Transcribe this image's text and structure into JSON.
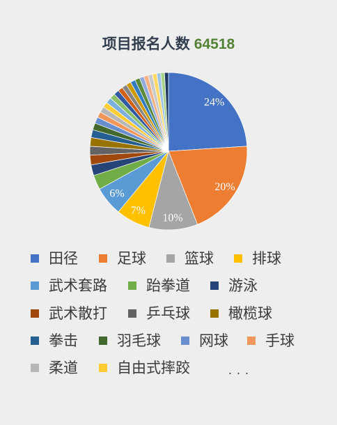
{
  "chart_data": {
    "type": "pie",
    "title": "项目报名人数",
    "total": "64518",
    "legend": {
      "position": "bottom",
      "more": ". . ."
    },
    "slices": [
      {
        "name": "田径",
        "value": 24,
        "color": "#4472C4",
        "label": "24%"
      },
      {
        "name": "足球",
        "value": 20,
        "color": "#ED7D31",
        "label": "20%"
      },
      {
        "name": "篮球",
        "value": 10,
        "color": "#A5A5A5",
        "label": "10%"
      },
      {
        "name": "排球",
        "value": 7,
        "color": "#FFC000",
        "label": "7%"
      },
      {
        "name": "武术套路",
        "value": 6,
        "color": "#5B9BD5",
        "label": "6%"
      },
      {
        "name": "跆拳道",
        "value": 3,
        "color": "#70AD47"
      },
      {
        "name": "游泳",
        "value": 2.2,
        "color": "#264478"
      },
      {
        "name": "武术散打",
        "value": 2,
        "color": "#9E480E"
      },
      {
        "name": "乒乓球",
        "value": 1.8,
        "color": "#636363"
      },
      {
        "name": "橄榄球",
        "value": 1.8,
        "color": "#997300"
      },
      {
        "name": "拳击",
        "value": 1.6,
        "color": "#255E91"
      },
      {
        "name": "羽毛球",
        "value": 1.4,
        "color": "#43682B"
      },
      {
        "name": "网球",
        "value": 1.3,
        "color": "#698ED0"
      },
      {
        "name": "手球",
        "value": 1.2,
        "color": "#F1975A"
      },
      {
        "name": "柔道",
        "value": 1.2,
        "color": "#B7B7B7"
      },
      {
        "name": "自由式摔跤",
        "value": 1.1,
        "color": "#FFCD33"
      },
      {
        "name": "",
        "value": 1.2,
        "color": "#7CAFDD"
      },
      {
        "name": "",
        "value": 1.1,
        "color": "#8CC168"
      },
      {
        "name": "",
        "value": 1.1,
        "color": "#335AA1"
      },
      {
        "name": "",
        "value": 1.0,
        "color": "#D26012"
      },
      {
        "name": "",
        "value": 1.0,
        "color": "#848484"
      },
      {
        "name": "",
        "value": 1.0,
        "color": "#CC9A00"
      },
      {
        "name": "",
        "value": 1.0,
        "color": "#327DC2"
      },
      {
        "name": "",
        "value": 1.0,
        "color": "#5A8A39"
      },
      {
        "name": "",
        "value": 0.9,
        "color": "#8FAADC"
      },
      {
        "name": "",
        "value": 0.9,
        "color": "#F4B183"
      },
      {
        "name": "",
        "value": 0.9,
        "color": "#C9C9C9"
      },
      {
        "name": "",
        "value": 0.9,
        "color": "#FFD966"
      },
      {
        "name": "",
        "value": 0.8,
        "color": "#9DC3E6"
      },
      {
        "name": "",
        "value": 0.8,
        "color": "#A9D18E"
      },
      {
        "name": "",
        "value": 0.8,
        "color": "#203864"
      }
    ]
  }
}
